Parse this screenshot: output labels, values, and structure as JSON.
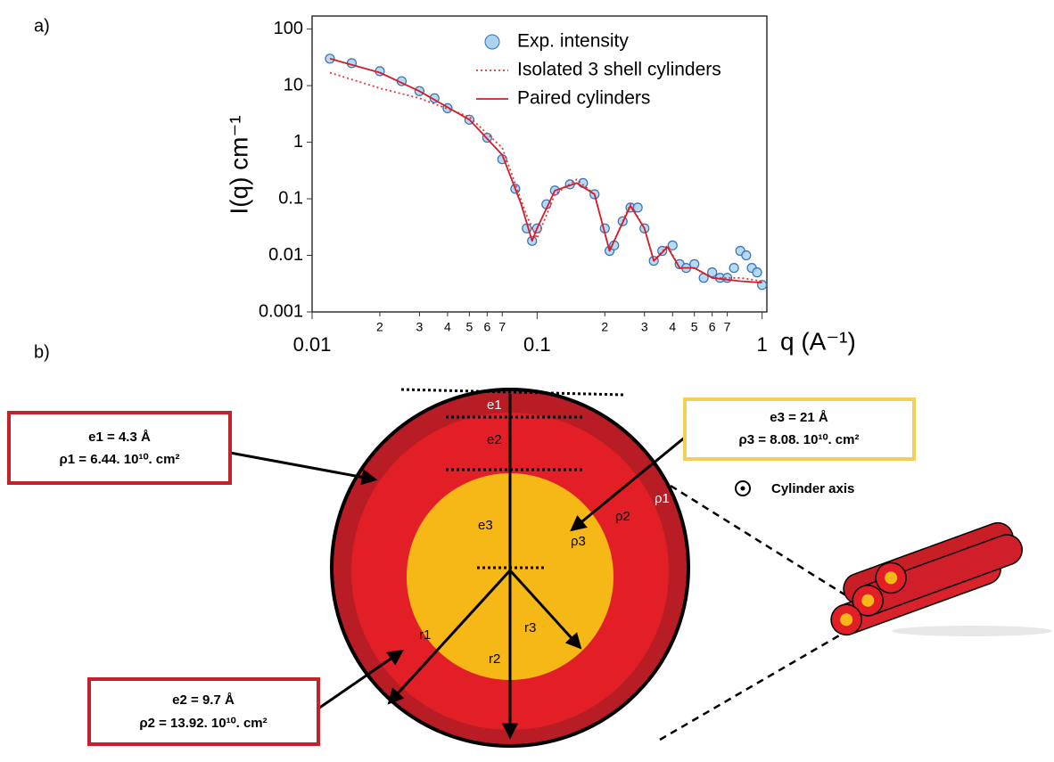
{
  "panels": [
    "a)",
    "b)"
  ],
  "chart_data": {
    "type": "loglog",
    "ylabel": "I(q) cm⁻¹",
    "xlabel": "q (A⁻¹)",
    "xscale": "log",
    "yscale": "log",
    "xlim": [
      0.01,
      1.05
    ],
    "ylim": [
      0.001,
      170
    ],
    "xticks": [
      0.01,
      {
        "value": 0.02,
        "label": "2"
      },
      {
        "value": 0.03,
        "label": "3"
      },
      {
        "value": 0.04,
        "label": "4"
      },
      {
        "value": 0.05,
        "label": "5"
      },
      {
        "value": 0.06,
        "label": "6"
      },
      {
        "value": 0.07,
        "label": "7"
      },
      0.1,
      {
        "value": 0.2,
        "label": "2"
      },
      {
        "value": 0.3,
        "label": "3"
      },
      {
        "value": 0.4,
        "label": "4"
      },
      {
        "value": 0.5,
        "label": "5"
      },
      {
        "value": 0.6,
        "label": "6"
      },
      {
        "value": 0.7,
        "label": "7"
      },
      1
    ],
    "yticks": [
      0.001,
      0.01,
      0.1,
      1,
      10,
      100
    ],
    "legend": "upper right",
    "series": [
      {
        "name": "Exp. intensity",
        "kind": "scatter",
        "color": "#a9d3f0",
        "edge": "#3a6fb5",
        "x": [
          0.012,
          0.015,
          0.02,
          0.025,
          0.03,
          0.035,
          0.04,
          0.05,
          0.06,
          0.07,
          0.08,
          0.09,
          0.095,
          0.1,
          0.11,
          0.12,
          0.14,
          0.16,
          0.18,
          0.2,
          0.21,
          0.22,
          0.24,
          0.26,
          0.28,
          0.3,
          0.33,
          0.36,
          0.4,
          0.43,
          0.46,
          0.5,
          0.55,
          0.6,
          0.65,
          0.7,
          0.75,
          0.8,
          0.85,
          0.9,
          0.95,
          1.0
        ],
        "values": [
          30,
          25,
          18,
          12,
          8,
          6,
          4,
          2.5,
          1.2,
          0.5,
          0.15,
          0.03,
          0.018,
          0.03,
          0.08,
          0.14,
          0.18,
          0.19,
          0.12,
          0.03,
          0.012,
          0.015,
          0.04,
          0.07,
          0.07,
          0.03,
          0.008,
          0.012,
          0.015,
          0.007,
          0.006,
          0.007,
          0.004,
          0.005,
          0.004,
          0.004,
          0.006,
          0.012,
          0.01,
          0.006,
          0.005,
          0.003
        ]
      },
      {
        "name": "Isolated 3 shell cylinders",
        "kind": "line",
        "dash": true,
        "color": "#e8353a",
        "x": [
          0.012,
          0.02,
          0.03,
          0.05,
          0.07,
          0.09,
          0.1,
          0.12,
          0.15,
          0.18,
          0.21,
          0.26,
          0.3,
          0.33,
          0.38,
          0.43,
          0.5,
          0.6,
          0.8,
          1.0
        ],
        "values": [
          17,
          9,
          6,
          2.8,
          0.8,
          0.05,
          0.02,
          0.12,
          0.22,
          0.12,
          0.012,
          0.08,
          0.03,
          0.008,
          0.015,
          0.006,
          0.006,
          0.004,
          0.004,
          0.0035
        ]
      },
      {
        "name": "Paired cylinders",
        "kind": "line",
        "dash": false,
        "color": "#d01f2a",
        "x": [
          0.012,
          0.02,
          0.03,
          0.05,
          0.07,
          0.085,
          0.095,
          0.1,
          0.12,
          0.15,
          0.18,
          0.21,
          0.26,
          0.3,
          0.33,
          0.38,
          0.43,
          0.5,
          0.6,
          0.8,
          1.0
        ],
        "values": [
          30,
          17,
          8,
          2.5,
          0.6,
          0.08,
          0.018,
          0.03,
          0.14,
          0.19,
          0.12,
          0.012,
          0.075,
          0.03,
          0.008,
          0.014,
          0.006,
          0.006,
          0.004,
          0.0035,
          0.0033
        ]
      }
    ]
  },
  "diagram": {
    "labels": [
      "e1",
      "e2",
      "e3",
      "ρ1",
      "ρ2",
      "ρ3",
      "r1",
      "r2",
      "r3"
    ],
    "boxes": [
      [
        "e1 = 4.3 Å",
        "ρ1 = 6.44. 10¹⁰. cm²"
      ],
      [
        "e3 = 21 Å",
        "ρ3 = 8.08. 10¹⁰. cm²"
      ],
      [
        "e2 = 9.7 Å",
        "ρ2 = 13.92. 10¹⁰. cm²"
      ]
    ],
    "axis_label": "Cylinder axis"
  }
}
